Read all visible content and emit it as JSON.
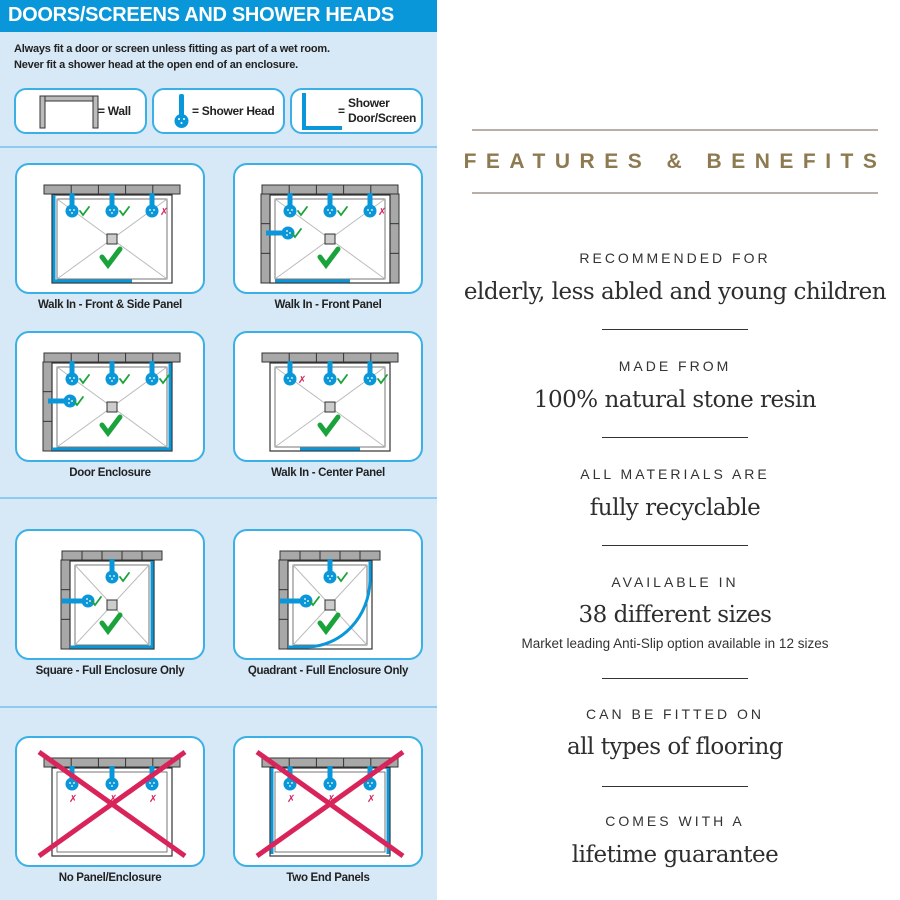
{
  "left": {
    "title": "DOORS/SCREENS AND SHOWER HEADS",
    "intro": [
      "Always fit a door or screen unless fitting as part of a wet room.",
      "Never fit a shower head at the open end of an enclosure."
    ],
    "legend": {
      "wall": "= Wall",
      "shower_head": "= Shower Head",
      "door_eq": "=",
      "door_1": "Shower",
      "door_2": "Door/Screen"
    },
    "colors": {
      "blue": "#0a97d9",
      "ok": "#1aa33a",
      "bad": "#d8245a",
      "wall": "#a8a8a8"
    },
    "cards": [
      {
        "label": "Walk In - Front & Side Panel",
        "top_heads": [
          "ok",
          "ok",
          "bad"
        ],
        "side_head": null,
        "prohibited": false
      },
      {
        "label": "Walk In - Front Panel",
        "top_heads": [
          "ok",
          "ok",
          "bad"
        ],
        "side_head": "ok",
        "prohibited": false
      },
      {
        "label": "Door Enclosure",
        "top_heads": [
          "ok",
          "ok",
          "ok"
        ],
        "side_head": "ok",
        "prohibited": false
      },
      {
        "label": "Walk In - Center Panel",
        "top_heads": [
          "bad",
          "ok",
          "ok"
        ],
        "side_head": null,
        "prohibited": false
      },
      {
        "label": "Square - Full Enclosure Only",
        "top_heads": [
          "ok"
        ],
        "side_head": "ok",
        "prohibited": false
      },
      {
        "label": "Quadrant - Full Enclosure Only",
        "top_heads": [
          "ok"
        ],
        "side_head": "ok",
        "prohibited": false
      },
      {
        "label": "No Panel/Enclosure",
        "top_heads": [
          "bad",
          "bad",
          "bad"
        ],
        "side_head": null,
        "prohibited": true
      },
      {
        "label": "Two End Panels",
        "top_heads": [
          "bad",
          "bad",
          "bad"
        ],
        "side_head": null,
        "prohibited": true
      }
    ]
  },
  "right": {
    "title": "FEATURES & BENEFITS",
    "items": [
      {
        "label": "RECOMMENDED FOR",
        "value": "elderly, less abled and young children"
      },
      {
        "label": "MADE FROM",
        "value": "100% natural stone resin"
      },
      {
        "label": "ALL MATERIALS ARE",
        "value": "fully recyclable"
      },
      {
        "label": "AVAILABLE IN",
        "value": "38 different sizes",
        "note": "Market leading Anti-Slip option available in 12 sizes"
      },
      {
        "label": "CAN BE FITTED ON",
        "value": "all types of flooring"
      },
      {
        "label": "COMES WITH A",
        "value": "lifetime guarantee"
      }
    ]
  }
}
